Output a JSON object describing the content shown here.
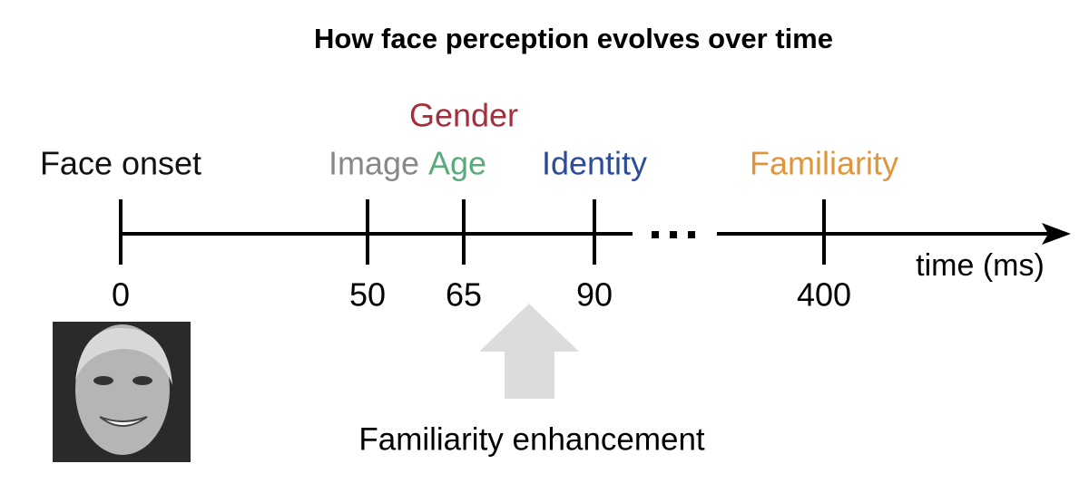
{
  "title": "How face perception evolves over time",
  "ticks": [
    {
      "time": 0,
      "labels": [
        {
          "text": "Face onset",
          "color": "#111111"
        }
      ]
    },
    {
      "time": 50,
      "labels": [
        {
          "text": "Image",
          "color": "#888888"
        }
      ]
    },
    {
      "time": 65,
      "labels": [
        {
          "text": "Age",
          "color": "#5aab7c"
        },
        {
          "text": "Gender",
          "color": "#a3303c"
        }
      ]
    },
    {
      "time": 90,
      "labels": [
        {
          "text": "Identity",
          "color": "#2b4c98"
        }
      ]
    },
    {
      "time": 400,
      "labels": [
        {
          "text": "Familiarity",
          "color": "#e0953b"
        }
      ]
    }
  ],
  "axis_label": "time (ms)",
  "annotation": "Familiarity enhancement"
}
